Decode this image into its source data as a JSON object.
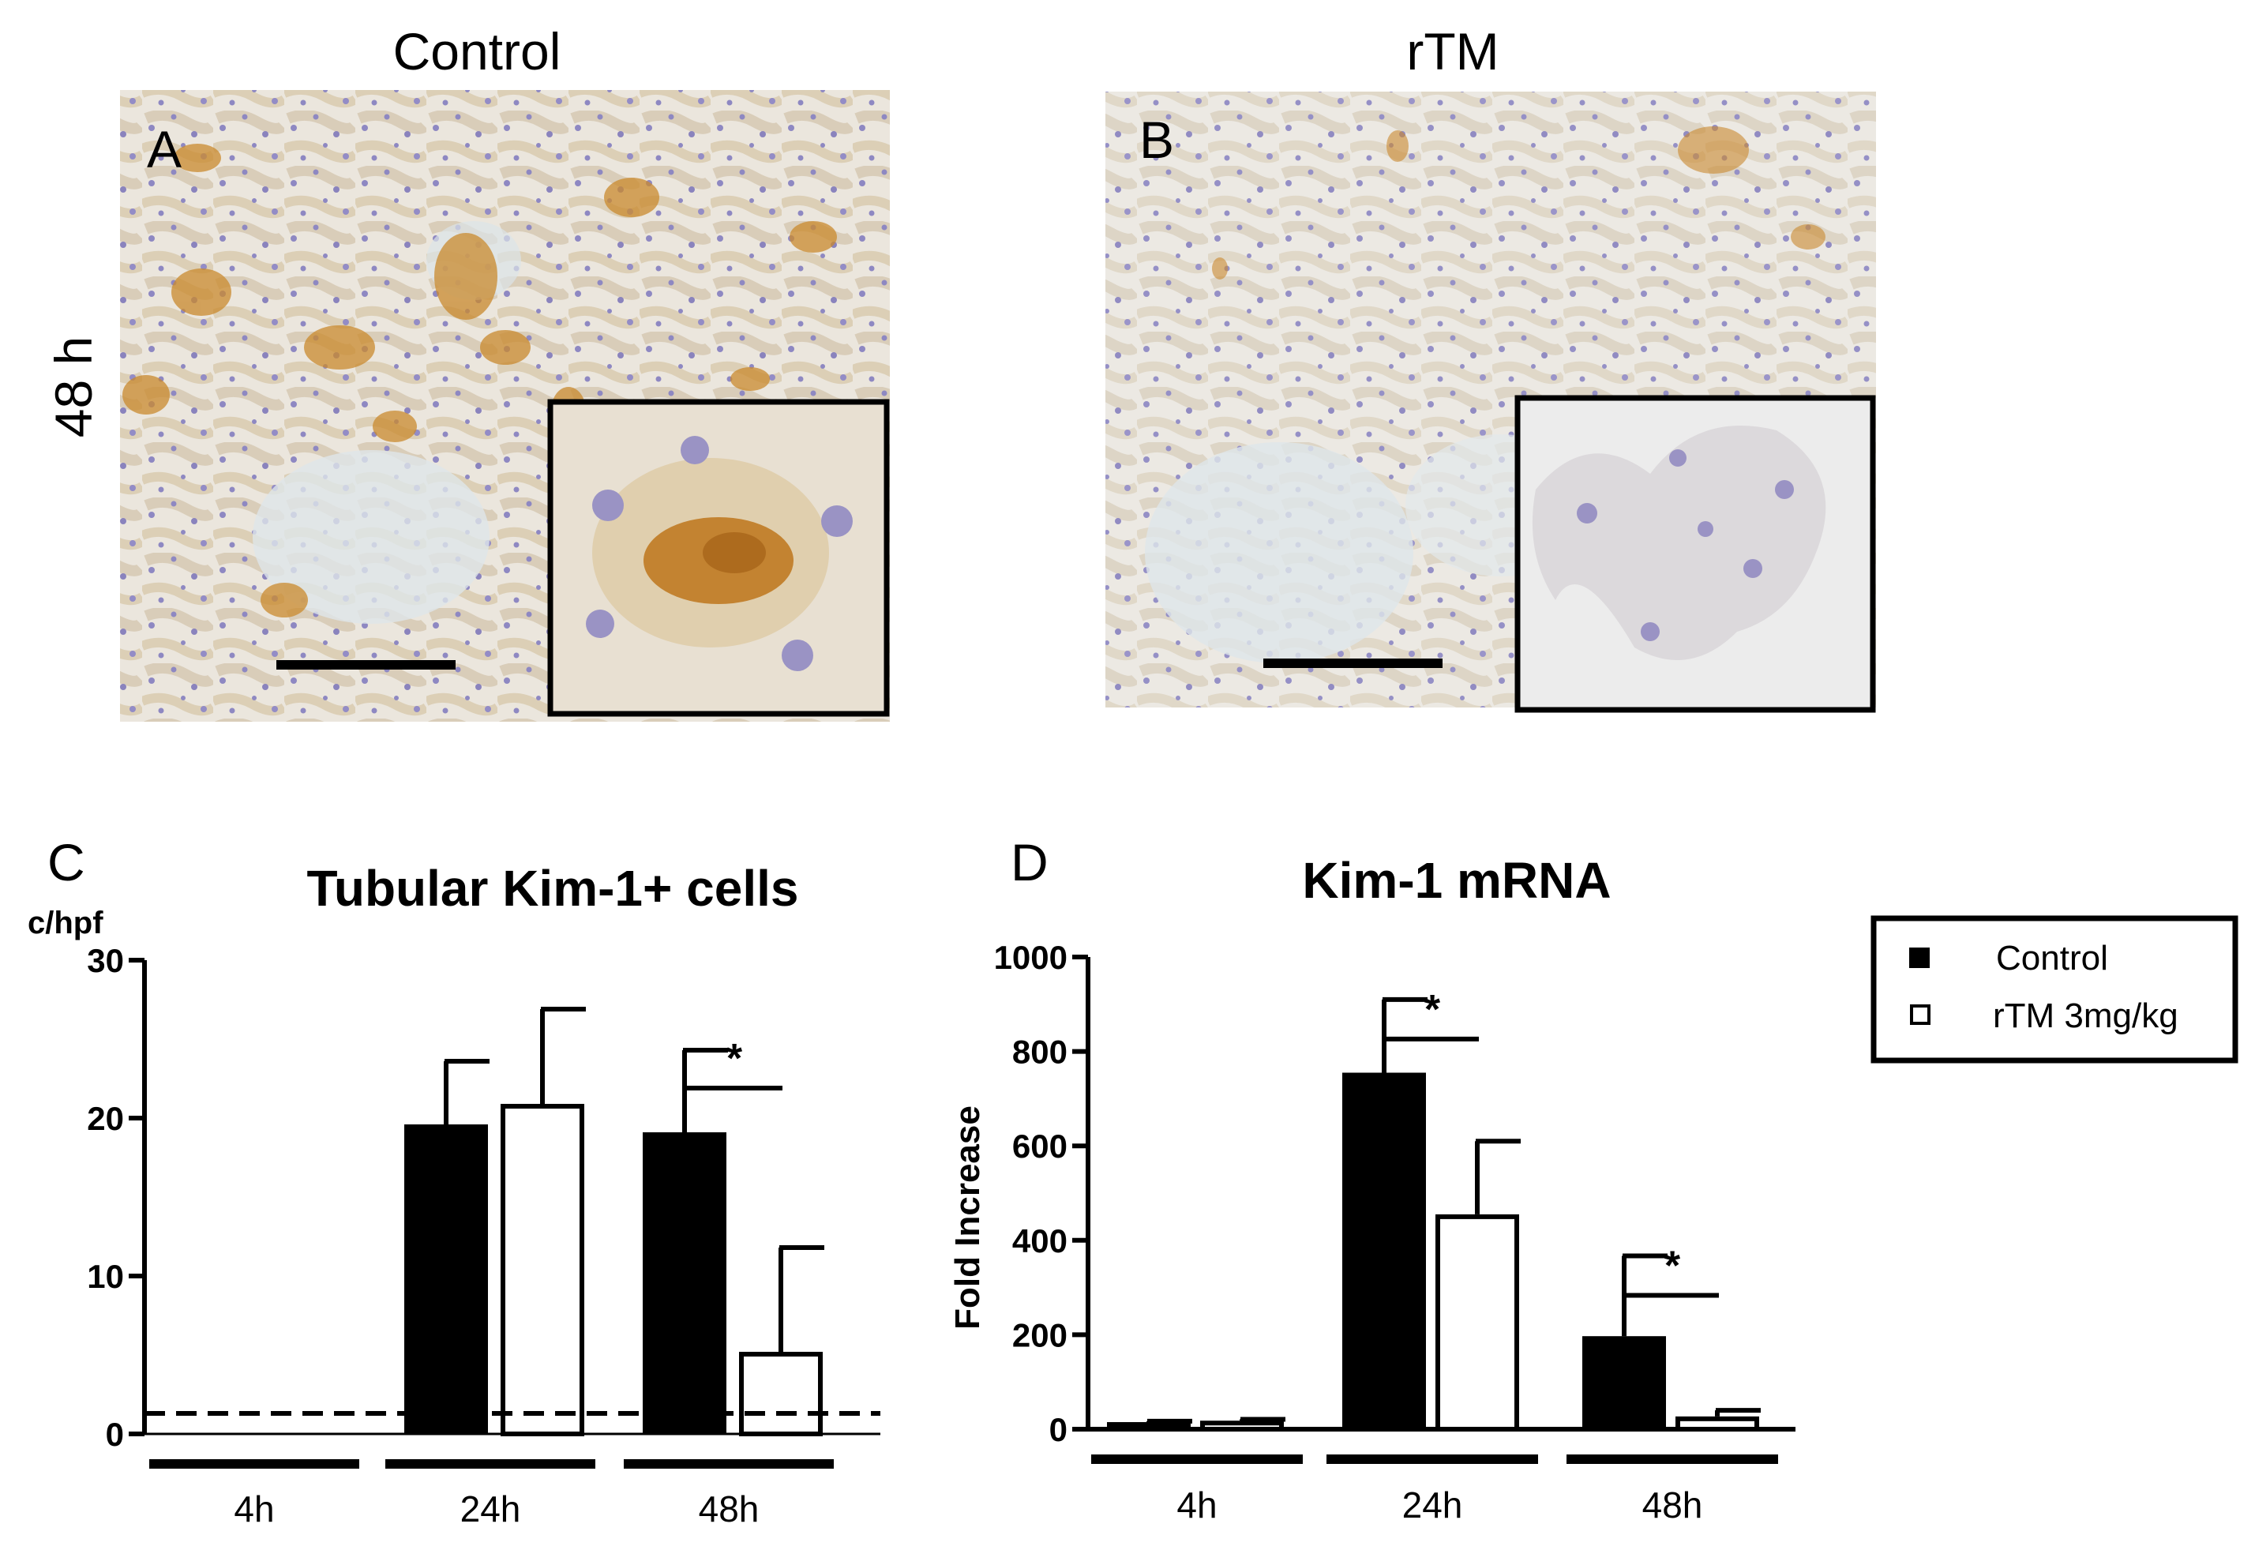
{
  "panels": {
    "A": {
      "letter": "A",
      "column_title": "Control",
      "row_label": "48 h"
    },
    "B": {
      "letter": "B",
      "column_title": "rTM"
    },
    "C": {
      "letter": "C"
    },
    "D": {
      "letter": "D"
    }
  },
  "colors": {
    "control_fill": "#000000",
    "rtm_fill": "#ffffff",
    "tissue_bg": "#f0ede6",
    "brown_stain": "#c9892e",
    "hematoxylin": "#7f78b8"
  },
  "legend": {
    "position": "right",
    "items": [
      {
        "label": "Control",
        "swatch": "filled-square"
      },
      {
        "label": "rTM 3mg/kg",
        "swatch": "open-square"
      }
    ]
  },
  "chart_data": [
    {
      "type": "bar",
      "title": "Tubular Kim-1+ cells",
      "ylabel": "c/hpf",
      "xlabel": "",
      "ylim": [
        0,
        30
      ],
      "yticks": [
        0,
        10,
        20,
        30
      ],
      "categories": [
        "4h",
        "24h",
        "48h"
      ],
      "series": [
        {
          "name": "Control",
          "values": [
            0,
            19.6,
            19.1
          ],
          "errors": [
            0,
            4.0,
            5.2
          ]
        },
        {
          "name": "rTM 3mg/kg",
          "values": [
            0,
            20.9,
            5.2
          ],
          "errors": [
            0,
            6.0,
            6.6
          ]
        }
      ],
      "reference_line": {
        "value": 1.3,
        "style": "dashed"
      },
      "significance": [
        {
          "category": "48h",
          "label": "*"
        }
      ],
      "grid": false
    },
    {
      "type": "bar",
      "title": "Kim-1 mRNA",
      "ylabel": "Fold Increase",
      "xlabel": "",
      "ylim": [
        0,
        1000
      ],
      "yticks": [
        0,
        200,
        400,
        600,
        800,
        1000
      ],
      "categories": [
        "4h",
        "24h",
        "48h"
      ],
      "series": [
        {
          "name": "Control",
          "values": [
            15,
            755,
            197
          ],
          "errors": [
            2,
            155,
            170
          ]
        },
        {
          "name": "rTM 3mg/kg",
          "values": [
            18,
            455,
            27
          ],
          "errors": [
            3,
            155,
            13
          ]
        }
      ],
      "significance": [
        {
          "category": "24h",
          "label": "*"
        },
        {
          "category": "48h",
          "label": "*"
        }
      ],
      "grid": false
    }
  ]
}
